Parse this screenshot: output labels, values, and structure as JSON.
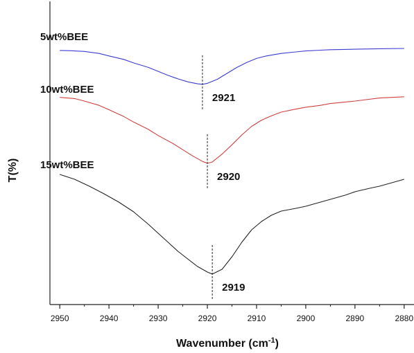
{
  "chart_data": {
    "type": "line",
    "xlabel": "Wavenumber (cm",
    "xlabel_sup": "-1",
    "xlabel_close": ")",
    "ylabel": "T(%)",
    "xlim": [
      2952,
      2878
    ],
    "x_reversed": true,
    "x_ticks": [
      2950,
      2940,
      2930,
      2920,
      2910,
      2900,
      2890,
      2880
    ],
    "y_ticks_shown": false,
    "grid": false,
    "series": [
      {
        "name": "5wt%BEE",
        "color": "#3b3bd0",
        "x": [
          2950,
          2948,
          2945,
          2942,
          2940,
          2937,
          2935,
          2932,
          2930,
          2928,
          2926,
          2924,
          2922,
          2921,
          2920,
          2918,
          2916,
          2914,
          2912,
          2910,
          2908,
          2905,
          2902,
          2900,
          2897,
          2895,
          2890,
          2885,
          2880
        ],
        "y": [
          0.4,
          0.45,
          0.6,
          1.0,
          1.5,
          2.2,
          2.9,
          3.8,
          4.6,
          5.4,
          6.1,
          6.7,
          7.1,
          7.2,
          7.0,
          6.2,
          5.0,
          3.8,
          2.8,
          2.0,
          1.5,
          1.0,
          0.7,
          0.5,
          0.35,
          0.25,
          0.15,
          0.05,
          0.0
        ]
      },
      {
        "name": "10wt%BEE",
        "color": "#d04040",
        "x": [
          2950,
          2947,
          2945,
          2942,
          2940,
          2937,
          2935,
          2932,
          2930,
          2927,
          2925,
          2923,
          2921,
          2920,
          2919,
          2917,
          2915,
          2913,
          2911,
          2909,
          2907,
          2905,
          2902,
          2900,
          2897,
          2895,
          2890,
          2885,
          2880
        ],
        "y": [
          0.3,
          0.5,
          0.9,
          1.6,
          2.3,
          3.4,
          4.3,
          5.5,
          6.5,
          7.8,
          8.8,
          9.8,
          10.7,
          11.0,
          10.8,
          9.5,
          8.0,
          6.4,
          5.0,
          4.0,
          3.3,
          2.7,
          2.2,
          1.9,
          1.6,
          1.3,
          0.9,
          0.4,
          0.2
        ]
      },
      {
        "name": "15wt%BEE",
        "color": "#222222",
        "x": [
          2950,
          2947,
          2944,
          2941,
          2938,
          2935,
          2932,
          2930,
          2928,
          2926,
          2924,
          2922,
          2920,
          2919,
          2917,
          2915,
          2913,
          2911,
          2909,
          2907,
          2905,
          2902,
          2900,
          2897,
          2895,
          2892,
          2890,
          2887,
          2885,
          2882,
          2880
        ],
        "y": [
          0.0,
          0.7,
          1.7,
          2.8,
          4.0,
          5.4,
          7.2,
          8.5,
          9.8,
          11.1,
          12.2,
          13.3,
          14.1,
          14.4,
          13.7,
          11.9,
          9.8,
          8.0,
          6.8,
          5.9,
          5.3,
          4.9,
          4.6,
          4.0,
          3.6,
          3.0,
          2.5,
          2.0,
          1.7,
          1.1,
          0.7
        ]
      }
    ],
    "annotations": [
      {
        "text": "2921",
        "x": 2921
      },
      {
        "text": "2920",
        "x": 2920
      },
      {
        "text": "2919",
        "x": 2919
      }
    ]
  }
}
